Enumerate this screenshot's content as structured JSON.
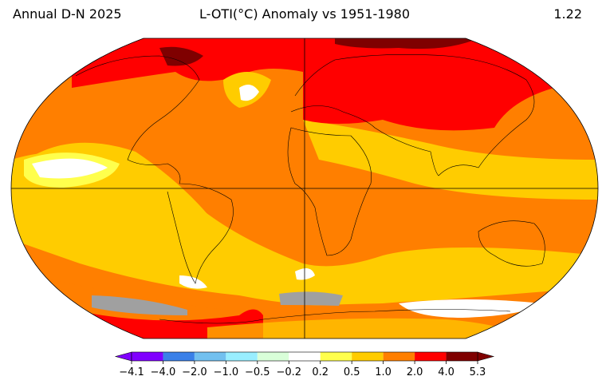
{
  "header": {
    "left": "Annual D-N 2025",
    "title": "L-OTI(°C) Anomaly vs 1951-1980",
    "right": 1.22
  },
  "colorbar": {
    "ticks": [
      {
        "value": -4.1,
        "label": "−4.1"
      },
      {
        "value": -4.0,
        "label": "−4.0"
      },
      {
        "value": -2.0,
        "label": "−2.0"
      },
      {
        "value": -1.0,
        "label": "−1.0"
      },
      {
        "value": -0.5,
        "label": "−0.5"
      },
      {
        "value": -0.2,
        "label": "−0.2"
      },
      0.2,
      0.5,
      {
        "value": 1.0,
        "label": "1.0"
      },
      {
        "value": 2.0,
        "label": "2.0"
      },
      {
        "value": 4.0,
        "label": "4.0"
      },
      5.3
    ],
    "colors": [
      "#8000ff",
      "#3a80e8",
      "#72c0ef",
      "#99eeff",
      "#d9ffd9",
      "#ffffff",
      "#ffff4d",
      "#ffcc00",
      "#ff7f00",
      "#ff0000",
      "#7f0000"
    ]
  }
}
